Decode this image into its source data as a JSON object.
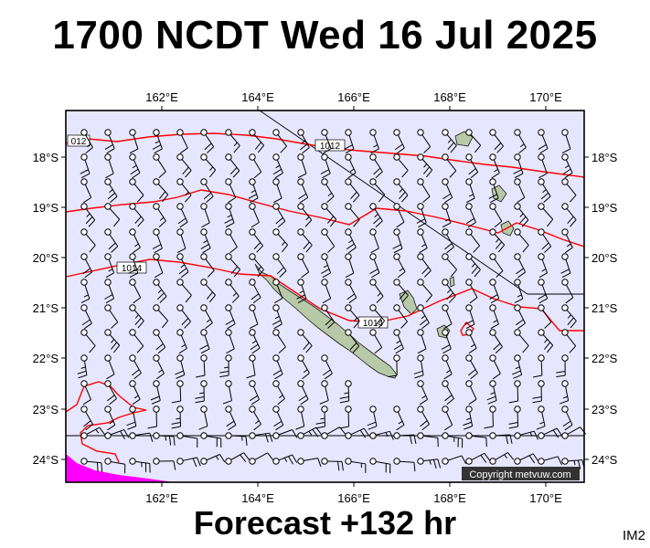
{
  "title": "1700 NCDT Wed 16 Jul 2025",
  "footer": "Forecast +132 hr",
  "image_code": "IM2",
  "copyright": "Copyright metvuw.com",
  "map": {
    "type": "surface pressure and wind forecast",
    "region": "New Caledonia",
    "lon_range": [
      160,
      171
    ],
    "lat_range": [
      -24.4,
      -17.0
    ],
    "lon_ticks": [
      "162°E",
      "164°E",
      "166°E",
      "168°E",
      "170°E"
    ],
    "lat_ticks": [
      "18°S",
      "19°S",
      "20°S",
      "21°S",
      "22°S",
      "23°S",
      "24°S"
    ],
    "isobar_labels": [
      "012",
      "1012",
      "1014",
      "1014"
    ],
    "colors": {
      "sea": "#e6e6ff",
      "land": "#b7c9a6",
      "isobar": "#ff0000",
      "magenta_region": "#ff00ff",
      "wind_barb": "#000000",
      "reference_line": "#000000"
    },
    "features": [
      "isobars",
      "wind barbs",
      "magenta heavy-precipitation area",
      "reference lines"
    ]
  }
}
